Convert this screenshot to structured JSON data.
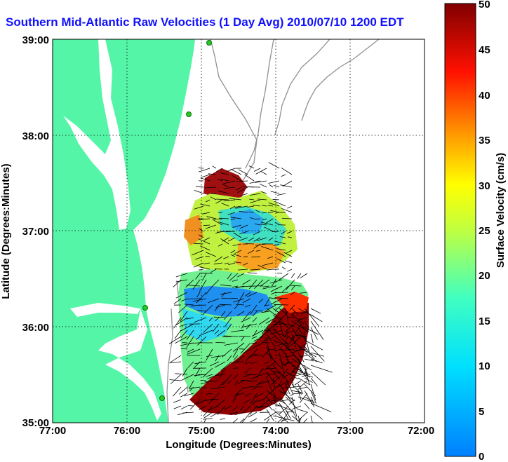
{
  "title": "Southern Mid-Atlantic Raw Velocities (1 Day Avg) 2010/07/10 1200 EDT",
  "xlabel": "Longitude (Degrees:Minutes)",
  "ylabel": "Latitude (Degrees:Minutes)",
  "colorbar_label": "Surface Velocity (cm/s)",
  "x_ticks": [
    "77:00",
    "76:00",
    "75:00",
    "74:00",
    "73:00",
    "72:00"
  ],
  "y_ticks": [
    "39:00",
    "38:00",
    "37:00",
    "36:00",
    "35:00"
  ],
  "colorbar_ticks": [
    "50",
    "45",
    "40",
    "35",
    "30",
    "25",
    "20",
    "15",
    "10",
    "5",
    "0"
  ],
  "colors": {
    "land": "#55f5a8",
    "title": "#1010ff",
    "contour": "#909090",
    "station": "#22cc22"
  },
  "map": {
    "lon_range": [
      -77,
      -72
    ],
    "lat_range": [
      35,
      39
    ],
    "colorbar_range": [
      0,
      50
    ],
    "colormap": "jet"
  }
}
